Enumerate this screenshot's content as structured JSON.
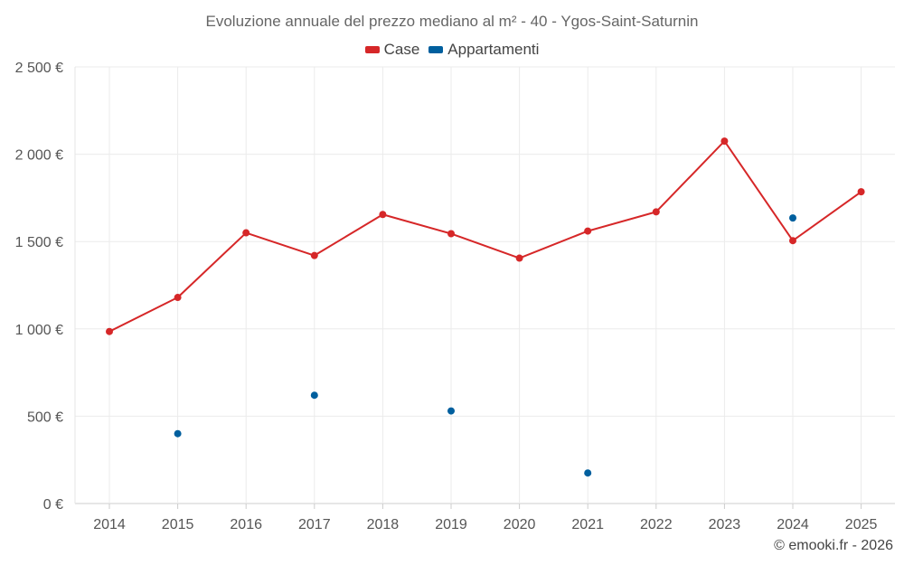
{
  "chart_data": {
    "type": "line",
    "title": "Evoluzione annuale del prezzo mediano al m² - 40 - Ygos-Saint-Saturnin",
    "categories": [
      "2014",
      "2015",
      "2016",
      "2017",
      "2018",
      "2019",
      "2020",
      "2021",
      "2022",
      "2023",
      "2024",
      "2025"
    ],
    "ylim": [
      0,
      2500
    ],
    "yticks": [
      0,
      500,
      1000,
      1500,
      2000,
      2500
    ],
    "ytick_labels": [
      "0 €",
      "500 €",
      "1 000 €",
      "1 500 €",
      "2 000 €",
      "2 500 €"
    ],
    "grid": true,
    "legend_position": "top-center",
    "series": [
      {
        "name": "Case",
        "color": "#d62728",
        "line": true,
        "values": [
          985,
          1180,
          1550,
          1420,
          1655,
          1545,
          1405,
          1560,
          1670,
          2075,
          1505,
          1785
        ]
      },
      {
        "name": "Appartamenti",
        "color": "#005f9e",
        "line": false,
        "values": [
          null,
          400,
          null,
          620,
          null,
          530,
          null,
          175,
          null,
          null,
          1635,
          null
        ]
      }
    ]
  },
  "footer": {
    "credit": "© emooki.fr - 2026"
  }
}
